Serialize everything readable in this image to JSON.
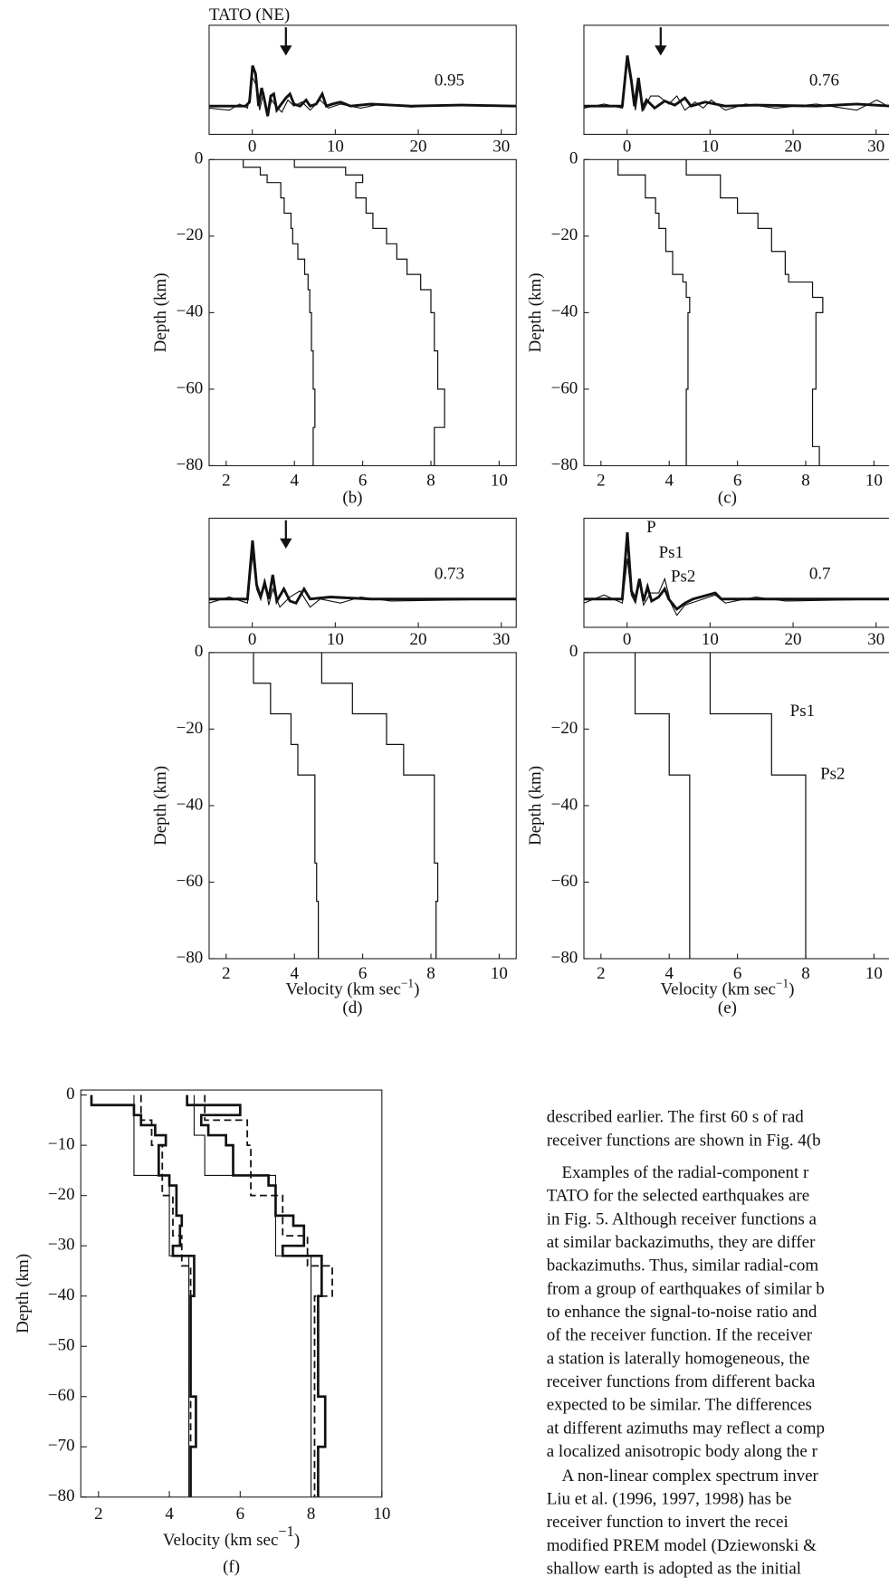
{
  "panels": [
    {
      "label": "(b)",
      "station": "TATO (NE)",
      "correlation": 0.95,
      "wave_xlim": [
        -5.2,
        31.8
      ],
      "wave_xticks": [
        0,
        10,
        20,
        30
      ],
      "xlim": [
        1.5,
        10.5
      ],
      "xticks": [
        2,
        4,
        6,
        8,
        10
      ],
      "ylim": [
        -80,
        0
      ],
      "yticks": [
        0,
        {
          "value": -20,
          "label": "−20"
        },
        {
          "value": -40,
          "label": "−40"
        },
        {
          "value": -60,
          "label": "−60"
        },
        {
          "value": -80,
          "label": "−80"
        }
      ],
      "ylabel": "Depth (km)",
      "model": {
        "tops": [
          0,
          -2,
          -4,
          -6,
          -10,
          -14,
          -18,
          -22,
          -26,
          -30,
          -34,
          -40,
          -50,
          -60,
          -70
        ],
        "vs": [
          2.5,
          3.0,
          3.2,
          3.6,
          3.7,
          3.9,
          3.95,
          4.1,
          4.3,
          4.4,
          4.45,
          4.5,
          4.55,
          4.6,
          4.55
        ],
        "vp": [
          4.0,
          5.5,
          6.0,
          5.8,
          6.1,
          6.3,
          6.7,
          7.0,
          7.3,
          7.7,
          8.0,
          8.1,
          8.2,
          8.4,
          8.1
        ]
      }
    },
    {
      "label": "(c)",
      "correlation": 0.76,
      "wave_xlim": [
        -5.2,
        31.8
      ],
      "wave_xticks": [
        0,
        10,
        20,
        30
      ],
      "xlim": [
        1.5,
        10.5
      ],
      "xticks": [
        2,
        4,
        6,
        8,
        10
      ],
      "ylim": [
        -80,
        0
      ],
      "yticks": [
        0,
        {
          "value": -20,
          "label": "−20"
        },
        {
          "value": -40,
          "label": "−40"
        },
        {
          "value": -60,
          "label": "−60"
        },
        {
          "value": -80,
          "label": "−80"
        }
      ],
      "ylabel": "Depth (km)",
      "model": {
        "tops": [
          0,
          -4,
          -10,
          -14,
          -18,
          -24,
          -30,
          -32,
          -36,
          -40,
          -60,
          -75
        ],
        "vs": [
          2.5,
          3.3,
          3.6,
          3.7,
          3.9,
          4.1,
          4.4,
          4.5,
          4.6,
          4.55,
          4.5,
          4.5
        ],
        "vp": [
          4.5,
          5.5,
          6.0,
          6.6,
          7.0,
          7.4,
          7.5,
          8.2,
          8.5,
          8.3,
          8.2,
          8.4
        ]
      }
    },
    {
      "label": "(d)",
      "correlation": 0.73,
      "wave_xlim": [
        -5.2,
        31.8
      ],
      "wave_xticks": [
        0,
        10,
        20,
        30
      ],
      "xlim": [
        1.5,
        10.5
      ],
      "xticks": [
        2,
        4,
        6,
        8,
        10
      ],
      "ylim": [
        -80,
        0
      ],
      "yticks": [
        0,
        {
          "value": -20,
          "label": "−20"
        },
        {
          "value": -40,
          "label": "−40"
        },
        {
          "value": -60,
          "label": "−60"
        },
        {
          "value": -80,
          "label": "−80"
        }
      ],
      "ylabel": "Depth (km)",
      "xlabel": {
        "text": "Velocity (km sec",
        "sup": "−1",
        "end": ")"
      },
      "model": {
        "tops": [
          0,
          -8,
          -16,
          -24,
          -32,
          -55,
          -65
        ],
        "vs": [
          2.8,
          3.3,
          3.9,
          4.1,
          4.6,
          4.65,
          4.7
        ],
        "vp": [
          4.8,
          5.7,
          6.7,
          7.2,
          8.1,
          8.2,
          8.15
        ]
      }
    },
    {
      "label": "(e)",
      "correlation": 0.7,
      "wave_xlim": [
        -5.2,
        31.8
      ],
      "wave_xticks": [
        0,
        10,
        20,
        30
      ],
      "xlim": [
        1.5,
        10.5
      ],
      "xticks": [
        2,
        4,
        6,
        8,
        10
      ],
      "ylim": [
        -80,
        0
      ],
      "yticks": [
        0,
        {
          "value": -20,
          "label": "−20"
        },
        {
          "value": -40,
          "label": "−40"
        },
        {
          "value": -60,
          "label": "−60"
        },
        {
          "value": -80,
          "label": "−80"
        }
      ],
      "ylabel": "Depth (km)",
      "xlabel": {
        "text": "Velocity (km sec",
        "sup": "−1",
        "end": ")"
      },
      "wave_labels": [
        "P",
        "Ps1",
        "Ps2"
      ],
      "depth_labels": [
        "Ps1",
        "Ps2"
      ],
      "model": {
        "tops": [
          0,
          -16,
          -32
        ],
        "vs": [
          3.0,
          4.0,
          4.6
        ],
        "vp": [
          5.2,
          7.0,
          8.0
        ]
      }
    }
  ],
  "figure_f": {
    "label": "(f)",
    "xlim": [
      1.5,
      10
    ],
    "xticks": [
      2,
      4,
      6,
      8,
      10
    ],
    "ylim": [
      -80,
      1
    ],
    "yticks": [
      0,
      {
        "value": -10,
        "label": "−10"
      },
      {
        "value": -20,
        "label": "−20"
      },
      {
        "value": -30,
        "label": "−30"
      },
      {
        "value": -40,
        "label": "−40"
      },
      {
        "value": -50,
        "label": "−50"
      },
      {
        "value": -60,
        "label": "−60"
      },
      {
        "value": -70,
        "label": "−70"
      },
      {
        "value": -80,
        "label": "−80"
      }
    ],
    "ylabel": "Depth (km)",
    "xlabel": {
      "text": "Velocity (km sec",
      "sup": "−1",
      "end": ")"
    },
    "models": [
      {
        "tops": [
          0,
          -8,
          -16,
          -32
        ],
        "vs": [
          3.0,
          3.0,
          4.0,
          4.55
        ],
        "vp": [
          4.7,
          5.0,
          7.0,
          8.0
        ]
      },
      {
        "tops": [
          0,
          -2,
          -4,
          -6,
          -8,
          -10,
          -16,
          -18,
          -24,
          -26,
          -30,
          -32,
          -40,
          -60,
          -70
        ],
        "vs": [
          1.8,
          3.0,
          3.2,
          3.6,
          3.9,
          3.7,
          4.0,
          4.2,
          4.35,
          4.3,
          4.1,
          4.7,
          4.6,
          4.75,
          4.6
        ],
        "vp": [
          4.5,
          6.0,
          4.9,
          5.1,
          5.6,
          5.8,
          6.8,
          7.0,
          7.5,
          7.8,
          7.2,
          8.3,
          8.2,
          8.4,
          8.2
        ]
      },
      {
        "tops": [
          0,
          -5,
          -10,
          -20,
          -28,
          -34,
          -40
        ],
        "vs": [
          3.2,
          3.5,
          3.8,
          4.1,
          4.35,
          4.6,
          4.6
        ],
        "vp": [
          5.0,
          6.2,
          6.3,
          7.2,
          7.9,
          8.6,
          8.1
        ]
      }
    ]
  },
  "body_text": [
    "described earlier. The first 60 s of rad",
    "receiver functions are shown in Fig. 4(b",
    "Examples of the radial-component r",
    "TATO for the selected earthquakes are",
    "in Fig. 5. Although receiver functions a",
    "at similar backazimuths, they are differ",
    "backazimuths. Thus, similar radial-com",
    "from a group of earthquakes of similar b",
    "to enhance the signal-to-noise ratio and",
    "of the receiver function. If the receiver",
    "a station is laterally homogeneous, the",
    "receiver functions from different backa",
    "expected to be similar. The differences",
    "at different azimuths may reflect a comp",
    "a localized anisotropic body along the r",
    "A non-linear complex spectrum inver",
    "Liu et al. (1996, 1997, 1998) has be",
    "receiver function to invert the recei",
    "modified PREM model (Dziewonski &",
    "shallow earth is adopted as the initial"
  ]
}
